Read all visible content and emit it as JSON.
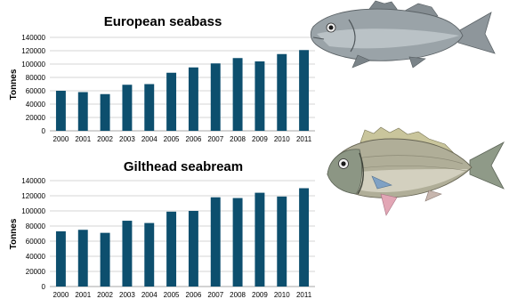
{
  "chart_data": [
    {
      "type": "bar",
      "title": "European seabass",
      "xlabel": "",
      "ylabel": "Tonnes",
      "categories": [
        "2000",
        "2001",
        "2002",
        "2003",
        "2004",
        "2005",
        "2006",
        "2007",
        "2008",
        "2009",
        "2010",
        "2011"
      ],
      "values": [
        60000,
        58000,
        55000,
        69000,
        70000,
        87000,
        95000,
        101000,
        109000,
        104000,
        115000,
        121000
      ],
      "ylim": [
        0,
        140000
      ],
      "yticks": [
        "0",
        "20000",
        "40000",
        "60000",
        "80000",
        "100000",
        "120000",
        "140000"
      ],
      "grid": true,
      "bar_color": "#0d4f6e"
    },
    {
      "type": "bar",
      "title": "Gilthead seabream",
      "xlabel": "",
      "ylabel": "Tonnes",
      "categories": [
        "2000",
        "2001",
        "2002",
        "2003",
        "2004",
        "2005",
        "2006",
        "2007",
        "2008",
        "2009",
        "2010",
        "2011"
      ],
      "values": [
        73000,
        75000,
        71000,
        87000,
        84000,
        99000,
        100000,
        118000,
        117000,
        124000,
        119000,
        130000
      ],
      "ylim": [
        0,
        140000
      ],
      "yticks": [
        "0",
        "20000",
        "40000",
        "60000",
        "80000",
        "100000",
        "120000",
        "140000"
      ],
      "grid": true,
      "bar_color": "#0d4f6e"
    }
  ],
  "illustrations": {
    "seabass": "european-seabass-fish-illustration",
    "seabream": "gilthead-seabream-fish-illustration"
  }
}
